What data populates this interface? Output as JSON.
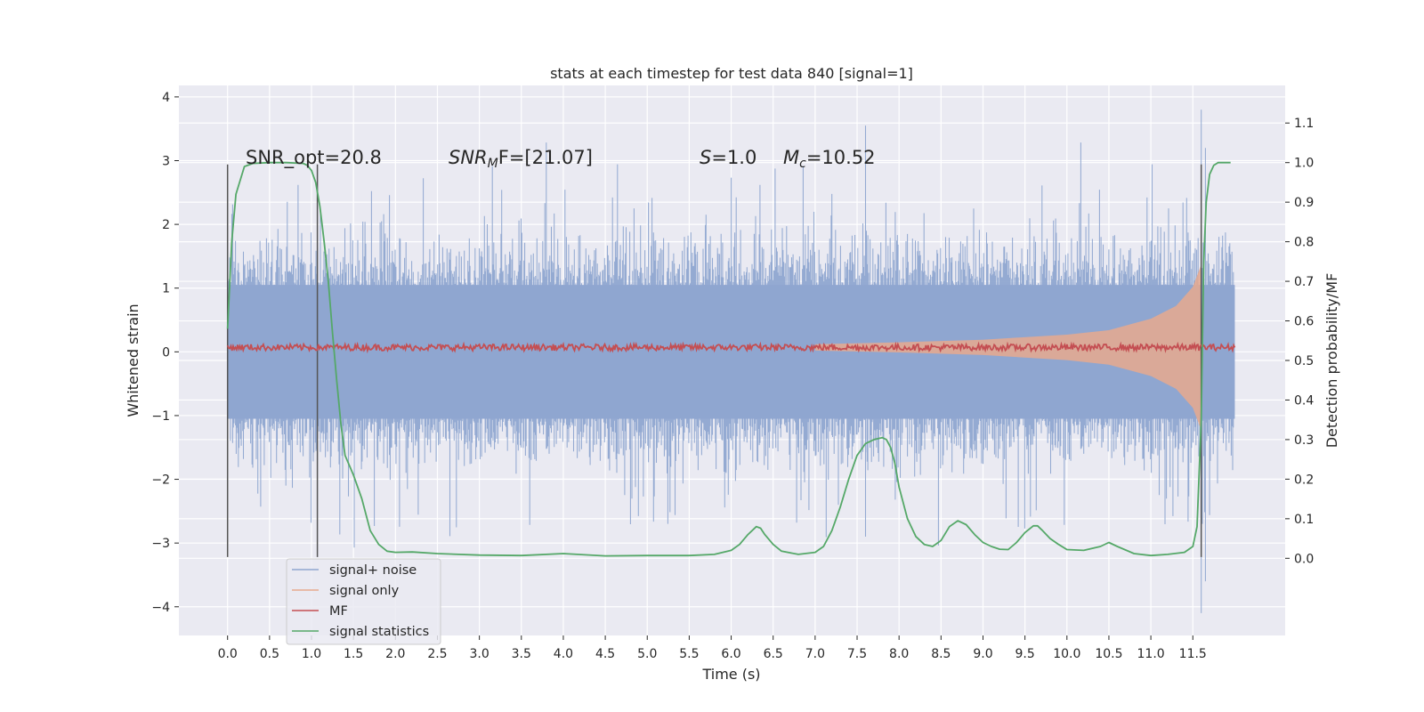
{
  "chart_data": {
    "type": "line",
    "title": "stats at each timestep for test data 840 [signal=1]",
    "xlabel": "Time (s)",
    "ylabel": "Whitened strain",
    "ylabel_right": "Detection probability/MF",
    "xlim": [
      -0.58,
      12.6
    ],
    "ylim": [
      -4.45,
      4.18
    ],
    "ylim_right": [
      -0.195,
      1.195
    ],
    "x_ticks": [
      "0.0",
      "0.5",
      "1.0",
      "1.5",
      "2.0",
      "2.5",
      "3.0",
      "3.5",
      "4.0",
      "4.5",
      "5.0",
      "5.5",
      "6.0",
      "6.5",
      "7.0",
      "7.5",
      "8.0",
      "8.5",
      "9.0",
      "9.5",
      "10.0",
      "10.5",
      "11.0",
      "11.5"
    ],
    "y_ticks": [
      "4",
      "3",
      "2",
      "1",
      "0",
      "−1",
      "−2",
      "−3",
      "−4"
    ],
    "y_ticks_right": [
      "1.1",
      "1.0",
      "0.9",
      "0.8",
      "0.7",
      "0.6",
      "0.5",
      "0.4",
      "0.3",
      "0.2",
      "0.1",
      "0.0"
    ],
    "grid": true,
    "legend_position": "lower-left",
    "annotations": {
      "snr_opt": "SNR_opt=20.8",
      "snr_mf_label": "SNR",
      "snr_mf_sub": "M",
      "snr_mf_rest": "F=[21.07]",
      "s_label": "S",
      "s_value": "=1.0",
      "mc_label": "M",
      "mc_sub": "c",
      "mc_value": "=10.52"
    },
    "vertical_lines": [
      0.0,
      1.07,
      11.6
    ],
    "series": [
      {
        "name": "signal+ noise",
        "color": "#8fa6d0",
        "x_range": [
          0.0,
          12.0
        ],
        "noise_peak_abs": 3.8,
        "note_values": "dense noise trace, typical envelope ±1.6"
      },
      {
        "name": "signal only",
        "color": "#e8a98e",
        "envelope": {
          "x": [
            7.0,
            8.0,
            9.0,
            10.0,
            10.5,
            11.0,
            11.3,
            11.5,
            11.6
          ],
          "amplitude": [
            0.05,
            0.08,
            0.12,
            0.2,
            0.27,
            0.45,
            0.65,
            0.95,
            1.3
          ]
        }
      },
      {
        "name": "MF",
        "color": "#c44e52",
        "level": 0.07,
        "jitter": 0.05
      },
      {
        "name": "signal statistics",
        "color": "#55a868",
        "x": [
          0.0,
          0.05,
          0.1,
          0.2,
          0.3,
          0.5,
          0.7,
          0.9,
          0.95,
          1.0,
          1.05,
          1.1,
          1.15,
          1.2,
          1.25,
          1.3,
          1.35,
          1.4,
          1.5,
          1.6,
          1.7,
          1.8,
          1.9,
          2.0,
          2.2,
          2.5,
          3.0,
          3.5,
          4.0,
          4.5,
          5.0,
          5.5,
          5.8,
          6.0,
          6.1,
          6.2,
          6.3,
          6.35,
          6.4,
          6.5,
          6.6,
          6.8,
          7.0,
          7.1,
          7.2,
          7.3,
          7.4,
          7.5,
          7.6,
          7.7,
          7.8,
          7.85,
          7.9,
          7.95,
          8.0,
          8.1,
          8.2,
          8.3,
          8.4,
          8.5,
          8.6,
          8.7,
          8.8,
          8.9,
          9.0,
          9.1,
          9.2,
          9.3,
          9.4,
          9.5,
          9.6,
          9.65,
          9.7,
          9.8,
          9.9,
          10.0,
          10.2,
          10.4,
          10.5,
          10.6,
          10.8,
          11.0,
          11.2,
          11.4,
          11.5,
          11.55,
          11.6,
          11.63,
          11.66,
          11.7,
          11.75,
          11.8,
          11.9,
          11.95
        ],
        "values": [
          0.58,
          0.8,
          0.92,
          0.99,
          0.998,
          1.0,
          1.0,
          0.998,
          0.993,
          0.98,
          0.95,
          0.89,
          0.8,
          0.7,
          0.57,
          0.45,
          0.34,
          0.26,
          0.21,
          0.15,
          0.07,
          0.035,
          0.018,
          0.015,
          0.016,
          0.012,
          0.008,
          0.007,
          0.012,
          0.006,
          0.007,
          0.007,
          0.01,
          0.02,
          0.035,
          0.06,
          0.08,
          0.076,
          0.06,
          0.035,
          0.018,
          0.01,
          0.015,
          0.03,
          0.07,
          0.13,
          0.2,
          0.26,
          0.29,
          0.3,
          0.305,
          0.3,
          0.28,
          0.24,
          0.18,
          0.1,
          0.055,
          0.035,
          0.03,
          0.045,
          0.08,
          0.095,
          0.085,
          0.06,
          0.04,
          0.03,
          0.023,
          0.022,
          0.04,
          0.065,
          0.082,
          0.082,
          0.072,
          0.05,
          0.035,
          0.022,
          0.02,
          0.03,
          0.04,
          0.03,
          0.012,
          0.007,
          0.01,
          0.015,
          0.03,
          0.08,
          0.35,
          0.75,
          0.9,
          0.97,
          0.993,
          1.0,
          1.0,
          1.0
        ]
      }
    ]
  }
}
